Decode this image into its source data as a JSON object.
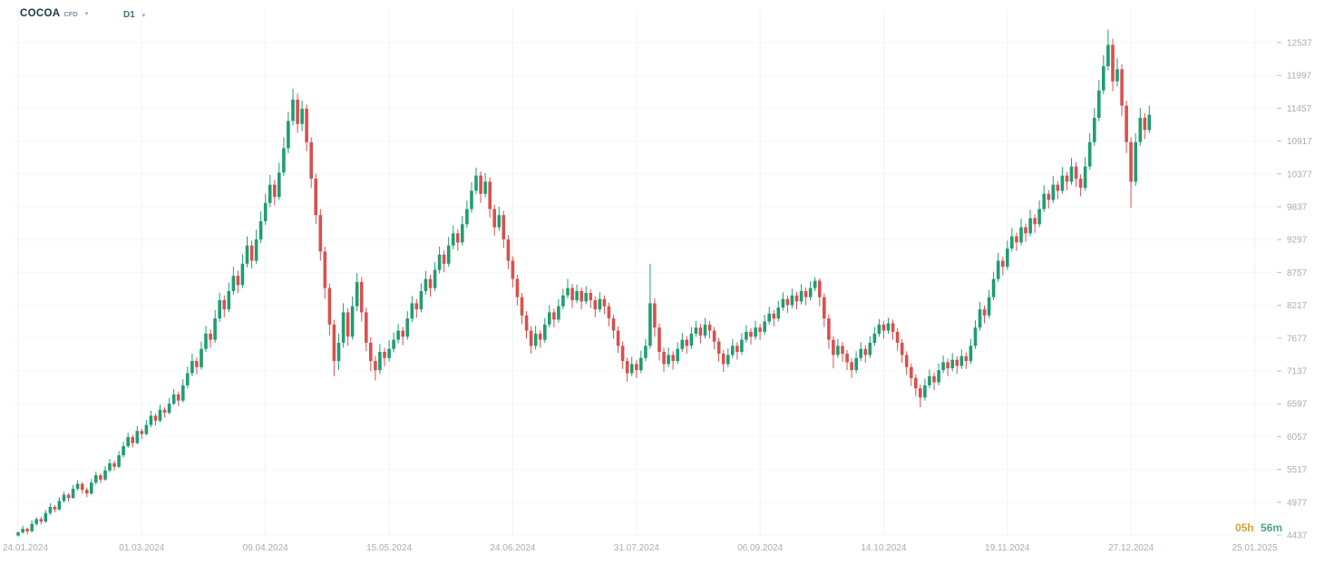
{
  "header": {
    "symbol": "COCOA",
    "instrument_type": "CFD",
    "timeframe": "D1"
  },
  "footer": {
    "session_countdown": {
      "hours": "05h",
      "minutes": "56m"
    }
  },
  "colors": {
    "up": "#1f9d72",
    "down": "#d9504e",
    "axis_text": "#a6adb3",
    "countdown_hours": "#d99e3e",
    "countdown_minutes": "#49a48e"
  },
  "chart_data": {
    "type": "candlestick",
    "title": "COCOA CFD D1",
    "symbol": "COCOA",
    "instrument_type": "CFD",
    "timeframe": "D1",
    "grid": true,
    "legend": "none",
    "x_axis": {
      "labels": [
        "24.01.2024",
        "01.03.2024",
        "09.04.2024",
        "15.05.2024",
        "24.06.2024",
        "31.07.2024",
        "06.09.2024",
        "14.10.2024",
        "19.11.2024",
        "27.12.2024",
        "25.01.2025"
      ],
      "label_indices": [
        0,
        27,
        54,
        81,
        108,
        135,
        162,
        189,
        216,
        243,
        270
      ]
    },
    "y_axis": {
      "min": 4437,
      "max": 12537,
      "ticks": [
        4437,
        4977,
        5517,
        6057,
        6597,
        7137,
        7677,
        8217,
        8757,
        9297,
        9837,
        10377,
        10917,
        11457,
        11997,
        12537
      ]
    },
    "candles": [
      [
        4430,
        4500,
        4410,
        4480
      ],
      [
        4480,
        4590,
        4460,
        4540
      ],
      [
        4540,
        4560,
        4450,
        4500
      ],
      [
        4500,
        4680,
        4480,
        4620
      ],
      [
        4620,
        4730,
        4590,
        4700
      ],
      [
        4700,
        4740,
        4610,
        4660
      ],
      [
        4660,
        4850,
        4640,
        4800
      ],
      [
        4800,
        4960,
        4770,
        4900
      ],
      [
        4900,
        4930,
        4810,
        4860
      ],
      [
        4860,
        5060,
        4840,
        5000
      ],
      [
        5000,
        5150,
        4970,
        5100
      ],
      [
        5100,
        5130,
        4990,
        5050
      ],
      [
        5050,
        5260,
        5030,
        5200
      ],
      [
        5200,
        5340,
        5170,
        5280
      ],
      [
        5280,
        5310,
        5120,
        5180
      ],
      [
        5180,
        5220,
        5060,
        5120
      ],
      [
        5120,
        5360,
        5100,
        5300
      ],
      [
        5300,
        5480,
        5270,
        5420
      ],
      [
        5420,
        5450,
        5290,
        5350
      ],
      [
        5350,
        5570,
        5330,
        5500
      ],
      [
        5500,
        5690,
        5470,
        5620
      ],
      [
        5620,
        5660,
        5500,
        5560
      ],
      [
        5560,
        5820,
        5540,
        5750
      ],
      [
        5750,
        5970,
        5710,
        5900
      ],
      [
        5900,
        6120,
        5870,
        6050
      ],
      [
        6050,
        6090,
        5880,
        5950
      ],
      [
        5950,
        6230,
        5930,
        6150
      ],
      [
        6150,
        6190,
        6020,
        6100
      ],
      [
        6100,
        6330,
        6080,
        6250
      ],
      [
        6250,
        6480,
        6210,
        6400
      ],
      [
        6400,
        6440,
        6240,
        6320
      ],
      [
        6320,
        6580,
        6290,
        6500
      ],
      [
        6500,
        6540,
        6370,
        6450
      ],
      [
        6450,
        6690,
        6420,
        6600
      ],
      [
        6600,
        6840,
        6570,
        6750
      ],
      [
        6750,
        6800,
        6560,
        6650
      ],
      [
        6650,
        7000,
        6620,
        6900
      ],
      [
        6900,
        7210,
        6850,
        7100
      ],
      [
        7100,
        7420,
        7050,
        7300
      ],
      [
        7300,
        7360,
        7080,
        7200
      ],
      [
        7200,
        7620,
        7160,
        7500
      ],
      [
        7500,
        7880,
        7450,
        7750
      ],
      [
        7750,
        7820,
        7520,
        7650
      ],
      [
        7650,
        8140,
        7600,
        8000
      ],
      [
        8000,
        8420,
        7940,
        8300
      ],
      [
        8300,
        8380,
        8020,
        8150
      ],
      [
        8150,
        8590,
        8100,
        8450
      ],
      [
        8450,
        8850,
        8390,
        8700
      ],
      [
        8700,
        8790,
        8420,
        8550
      ],
      [
        8550,
        9060,
        8500,
        8900
      ],
      [
        8900,
        9350,
        8840,
        9200
      ],
      [
        9200,
        9280,
        8820,
        8950
      ],
      [
        8950,
        9460,
        8900,
        9300
      ],
      [
        9300,
        9760,
        9240,
        9600
      ],
      [
        9600,
        10050,
        9540,
        9900
      ],
      [
        9900,
        10360,
        9830,
        10200
      ],
      [
        10200,
        10280,
        9860,
        10000
      ],
      [
        10000,
        10560,
        9950,
        10400
      ],
      [
        10400,
        10980,
        10340,
        10800
      ],
      [
        10800,
        11400,
        10720,
        11250
      ],
      [
        11250,
        11780,
        11180,
        11600
      ],
      [
        11600,
        11700,
        11050,
        11200
      ],
      [
        11200,
        11580,
        11080,
        11450
      ],
      [
        11450,
        11520,
        10750,
        10900
      ],
      [
        10900,
        10980,
        10150,
        10300
      ],
      [
        10300,
        10380,
        9550,
        9700
      ],
      [
        9700,
        9800,
        8950,
        9100
      ],
      [
        9100,
        9180,
        8330,
        8500
      ],
      [
        8500,
        8570,
        7720,
        7900
      ],
      [
        7900,
        7980,
        7050,
        7300
      ],
      [
        7300,
        7750,
        7150,
        7600
      ],
      [
        7600,
        8250,
        7520,
        8100
      ],
      [
        8100,
        8170,
        7550,
        7700
      ],
      [
        7700,
        8360,
        7650,
        8200
      ],
      [
        8200,
        8750,
        8120,
        8600
      ],
      [
        8600,
        8680,
        7950,
        8100
      ],
      [
        8100,
        8180,
        7460,
        7600
      ],
      [
        7600,
        7690,
        7130,
        7300
      ],
      [
        7300,
        7380,
        6980,
        7150
      ],
      [
        7150,
        7580,
        7090,
        7450
      ],
      [
        7450,
        7520,
        7210,
        7350
      ],
      [
        7350,
        7640,
        7290,
        7500
      ],
      [
        7500,
        7770,
        7440,
        7650
      ],
      [
        7650,
        7910,
        7590,
        7800
      ],
      [
        7800,
        7860,
        7560,
        7700
      ],
      [
        7700,
        8120,
        7650,
        8000
      ],
      [
        8000,
        8370,
        7940,
        8250
      ],
      [
        8250,
        8320,
        8010,
        8150
      ],
      [
        8150,
        8580,
        8100,
        8450
      ],
      [
        8450,
        8780,
        8390,
        8650
      ],
      [
        8650,
        8720,
        8360,
        8500
      ],
      [
        8500,
        8930,
        8450,
        8800
      ],
      [
        8800,
        9180,
        8740,
        9050
      ],
      [
        9050,
        9120,
        8760,
        8900
      ],
      [
        8900,
        9340,
        8850,
        9200
      ],
      [
        9200,
        9530,
        9140,
        9400
      ],
      [
        9400,
        9470,
        9110,
        9250
      ],
      [
        9250,
        9690,
        9200,
        9550
      ],
      [
        9550,
        9940,
        9490,
        9800
      ],
      [
        9800,
        10240,
        9740,
        10100
      ],
      [
        10100,
        10480,
        10040,
        10350
      ],
      [
        10350,
        10420,
        9900,
        10050
      ],
      [
        10050,
        10390,
        9990,
        10250
      ],
      [
        10250,
        10320,
        9660,
        9800
      ],
      [
        9800,
        9870,
        9360,
        9500
      ],
      [
        9500,
        9840,
        9440,
        9700
      ],
      [
        9700,
        9770,
        9160,
        9300
      ],
      [
        9300,
        9370,
        8810,
        8950
      ],
      [
        8950,
        9020,
        8510,
        8650
      ],
      [
        8650,
        8720,
        8210,
        8350
      ],
      [
        8350,
        8420,
        7910,
        8050
      ],
      [
        8050,
        8120,
        7670,
        7800
      ],
      [
        7800,
        7870,
        7420,
        7550
      ],
      [
        7550,
        7880,
        7490,
        7750
      ],
      [
        7750,
        7810,
        7520,
        7650
      ],
      [
        7650,
        8010,
        7600,
        7900
      ],
      [
        7900,
        8220,
        7850,
        8100
      ],
      [
        8100,
        8160,
        7850,
        7980
      ],
      [
        7980,
        8320,
        7930,
        8200
      ],
      [
        8200,
        8490,
        8150,
        8380
      ],
      [
        8380,
        8650,
        8330,
        8500
      ],
      [
        8500,
        8570,
        8170,
        8300
      ],
      [
        8300,
        8560,
        8250,
        8450
      ],
      [
        8450,
        8510,
        8150,
        8280
      ],
      [
        8280,
        8530,
        8230,
        8420
      ],
      [
        8420,
        8480,
        8170,
        8300
      ],
      [
        8300,
        8360,
        8020,
        8150
      ],
      [
        8150,
        8430,
        8100,
        8320
      ],
      [
        8320,
        8380,
        8070,
        8200
      ],
      [
        8200,
        8260,
        7870,
        8000
      ],
      [
        8000,
        8060,
        7670,
        7800
      ],
      [
        7800,
        7870,
        7430,
        7550
      ],
      [
        7550,
        7620,
        7170,
        7300
      ],
      [
        7300,
        7360,
        6960,
        7100
      ],
      [
        7100,
        7370,
        7050,
        7250
      ],
      [
        7250,
        7310,
        7020,
        7150
      ],
      [
        7150,
        7470,
        7100,
        7350
      ],
      [
        7350,
        7660,
        7300,
        7550
      ],
      [
        7550,
        8900,
        7500,
        8250
      ],
      [
        8250,
        8330,
        7700,
        7850
      ],
      [
        7850,
        7920,
        7310,
        7450
      ],
      [
        7450,
        7520,
        7120,
        7250
      ],
      [
        7250,
        7520,
        7200,
        7400
      ],
      [
        7400,
        7460,
        7160,
        7300
      ],
      [
        7300,
        7610,
        7250,
        7500
      ],
      [
        7500,
        7760,
        7450,
        7650
      ],
      [
        7650,
        7710,
        7420,
        7550
      ],
      [
        7550,
        7860,
        7500,
        7750
      ],
      [
        7750,
        7960,
        7700,
        7850
      ],
      [
        7850,
        7910,
        7590,
        7720
      ],
      [
        7720,
        8010,
        7670,
        7900
      ],
      [
        7900,
        7960,
        7670,
        7800
      ],
      [
        7800,
        7860,
        7490,
        7620
      ],
      [
        7620,
        7680,
        7290,
        7420
      ],
      [
        7420,
        7480,
        7120,
        7250
      ],
      [
        7250,
        7510,
        7200,
        7400
      ],
      [
        7400,
        7660,
        7350,
        7550
      ],
      [
        7550,
        7610,
        7320,
        7450
      ],
      [
        7450,
        7760,
        7400,
        7650
      ],
      [
        7650,
        7890,
        7600,
        7780
      ],
      [
        7780,
        7840,
        7570,
        7700
      ],
      [
        7700,
        7960,
        7650,
        7850
      ],
      [
        7850,
        7910,
        7650,
        7780
      ],
      [
        7780,
        8060,
        7730,
        7950
      ],
      [
        7950,
        8190,
        7900,
        8080
      ],
      [
        8080,
        8140,
        7870,
        8000
      ],
      [
        8000,
        8290,
        7950,
        8180
      ],
      [
        8180,
        8430,
        8130,
        8320
      ],
      [
        8320,
        8380,
        8090,
        8220
      ],
      [
        8220,
        8490,
        8170,
        8380
      ],
      [
        8380,
        8440,
        8150,
        8280
      ],
      [
        8280,
        8560,
        8230,
        8450
      ],
      [
        8450,
        8510,
        8220,
        8350
      ],
      [
        8350,
        8610,
        8300,
        8500
      ],
      [
        8500,
        8680,
        8450,
        8620
      ],
      [
        8620,
        8660,
        8200,
        8350
      ],
      [
        8350,
        8410,
        7860,
        8000
      ],
      [
        8000,
        8070,
        7500,
        7650
      ],
      [
        7650,
        7710,
        7180,
        7400
      ],
      [
        7400,
        7660,
        7350,
        7550
      ],
      [
        7550,
        7610,
        7290,
        7420
      ],
      [
        7420,
        7480,
        7150,
        7280
      ],
      [
        7280,
        7340,
        7020,
        7150
      ],
      [
        7150,
        7460,
        7100,
        7350
      ],
      [
        7350,
        7610,
        7300,
        7500
      ],
      [
        7500,
        7560,
        7270,
        7400
      ],
      [
        7400,
        7710,
        7350,
        7600
      ],
      [
        7600,
        7860,
        7550,
        7750
      ],
      [
        7750,
        7990,
        7700,
        7900
      ],
      [
        7900,
        7960,
        7670,
        7800
      ],
      [
        7800,
        8010,
        7750,
        7920
      ],
      [
        7920,
        7980,
        7650,
        7780
      ],
      [
        7780,
        7840,
        7470,
        7600
      ],
      [
        7600,
        7660,
        7270,
        7400
      ],
      [
        7400,
        7460,
        7070,
        7200
      ],
      [
        7200,
        7260,
        6890,
        7020
      ],
      [
        7020,
        7080,
        6720,
        6850
      ],
      [
        6850,
        6910,
        6540,
        6700
      ],
      [
        6700,
        7010,
        6650,
        6900
      ],
      [
        6900,
        7160,
        6850,
        7050
      ],
      [
        7050,
        7110,
        6820,
        6950
      ],
      [
        6950,
        7260,
        6900,
        7150
      ],
      [
        7150,
        7390,
        7100,
        7280
      ],
      [
        7280,
        7340,
        7050,
        7180
      ],
      [
        7180,
        7430,
        7130,
        7320
      ],
      [
        7320,
        7380,
        7090,
        7220
      ],
      [
        7220,
        7490,
        7170,
        7380
      ],
      [
        7380,
        7440,
        7170,
        7300
      ],
      [
        7300,
        7660,
        7250,
        7550
      ],
      [
        7550,
        7970,
        7500,
        7850
      ],
      [
        7850,
        8270,
        7800,
        8150
      ],
      [
        8150,
        8210,
        7920,
        8050
      ],
      [
        8050,
        8470,
        8000,
        8350
      ],
      [
        8350,
        8770,
        8300,
        8650
      ],
      [
        8650,
        9080,
        8600,
        8950
      ],
      [
        8950,
        9010,
        8710,
        8850
      ],
      [
        8850,
        9280,
        8800,
        9150
      ],
      [
        9150,
        9490,
        9100,
        9350
      ],
      [
        9350,
        9410,
        9110,
        9250
      ],
      [
        9250,
        9640,
        9200,
        9500
      ],
      [
        9500,
        9560,
        9260,
        9400
      ],
      [
        9400,
        9790,
        9350,
        9650
      ],
      [
        9650,
        9710,
        9410,
        9550
      ],
      [
        9550,
        9940,
        9500,
        9800
      ],
      [
        9800,
        10190,
        9750,
        10050
      ],
      [
        10050,
        10110,
        9810,
        9950
      ],
      [
        9950,
        10340,
        9900,
        10200
      ],
      [
        10200,
        10260,
        9960,
        10100
      ],
      [
        10100,
        10490,
        10050,
        10350
      ],
      [
        10350,
        10410,
        10110,
        10250
      ],
      [
        10250,
        10640,
        10200,
        10500
      ],
      [
        10500,
        10570,
        10160,
        10300
      ],
      [
        10300,
        10370,
        10010,
        10150
      ],
      [
        10150,
        10650,
        10100,
        10500
      ],
      [
        10500,
        11050,
        10450,
        10900
      ],
      [
        10900,
        11460,
        10840,
        11300
      ],
      [
        11300,
        11920,
        11240,
        11750
      ],
      [
        11750,
        12330,
        11690,
        12150
      ],
      [
        12150,
        12750,
        12080,
        12500
      ],
      [
        12500,
        12600,
        11740,
        11900
      ],
      [
        11900,
        12280,
        11820,
        12100
      ],
      [
        12100,
        12180,
        11330,
        11500
      ],
      [
        11500,
        11580,
        10720,
        10900
      ],
      [
        10900,
        10980,
        9820,
        10250
      ],
      [
        10250,
        11050,
        10180,
        10900
      ],
      [
        10900,
        11460,
        10840,
        11300
      ],
      [
        11300,
        11380,
        10950,
        11100
      ],
      [
        11100,
        11500,
        11050,
        11350
      ]
    ]
  }
}
